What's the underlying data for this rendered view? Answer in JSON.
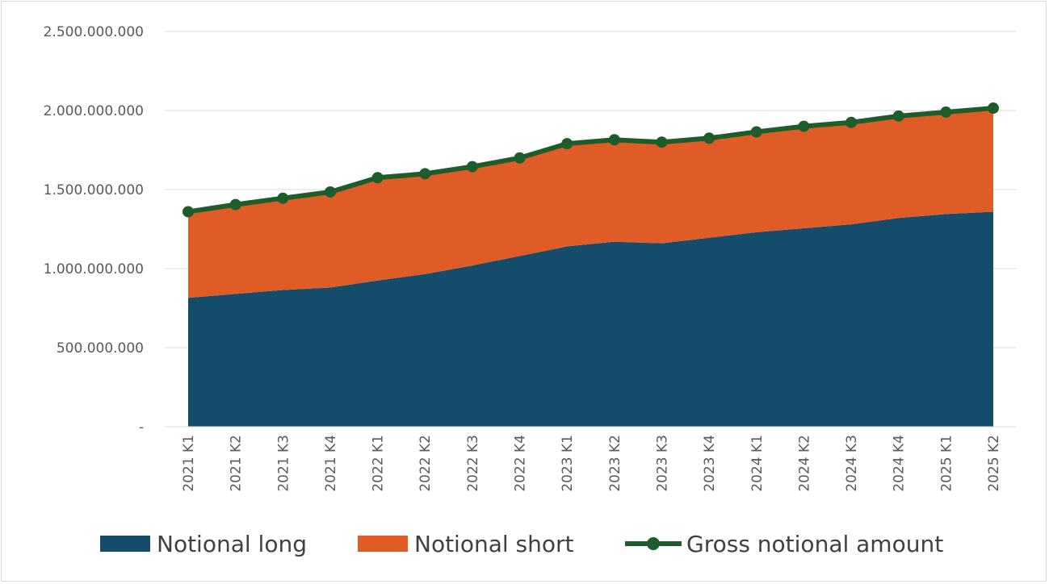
{
  "chart_data": {
    "type": "area",
    "title": "",
    "xlabel": "",
    "ylabel": "",
    "ylim": [
      0,
      2500000000
    ],
    "yticks": [
      0,
      500000000,
      1000000000,
      1500000000,
      2000000000,
      2500000000
    ],
    "ytick_labels": [
      "-",
      "500.000.000",
      "1.000.000.000",
      "1.500.000.000",
      "2.000.000.000",
      "2.500.000.000"
    ],
    "grid": true,
    "legend_position": "bottom",
    "categories": [
      "2021 K1",
      "2021 K2",
      "2021 K3",
      "2021 K4",
      "2022 K1",
      "2022 K2",
      "2022 K3",
      "2022 K4",
      "2023 K1",
      "2023 K2",
      "2023 K3",
      "2023 K4",
      "2024 K1",
      "2024 K2",
      "2024 K3",
      "2024 K4",
      "2025 K1",
      "2025 K2"
    ],
    "series": [
      {
        "name": "Notional long",
        "kind": "stacked-area",
        "color": "#154c6b",
        "values": [
          815000000,
          840000000,
          865000000,
          880000000,
          925000000,
          965000000,
          1020000000,
          1080000000,
          1140000000,
          1170000000,
          1160000000,
          1195000000,
          1230000000,
          1255000000,
          1280000000,
          1320000000,
          1345000000,
          1360000000
        ]
      },
      {
        "name": "Notional short",
        "kind": "stacked-area",
        "color": "#e05c26",
        "values": [
          545000000,
          565000000,
          580000000,
          605000000,
          650000000,
          635000000,
          625000000,
          620000000,
          650000000,
          645000000,
          640000000,
          630000000,
          635000000,
          645000000,
          645000000,
          645000000,
          645000000,
          655000000
        ]
      },
      {
        "name": "Gross notional amount",
        "kind": "line-markers",
        "color": "#1e5c2c",
        "values": [
          1360000000,
          1405000000,
          1445000000,
          1485000000,
          1575000000,
          1600000000,
          1645000000,
          1700000000,
          1790000000,
          1815000000,
          1800000000,
          1825000000,
          1865000000,
          1900000000,
          1925000000,
          1965000000,
          1990000000,
          2015000000
        ]
      }
    ]
  }
}
